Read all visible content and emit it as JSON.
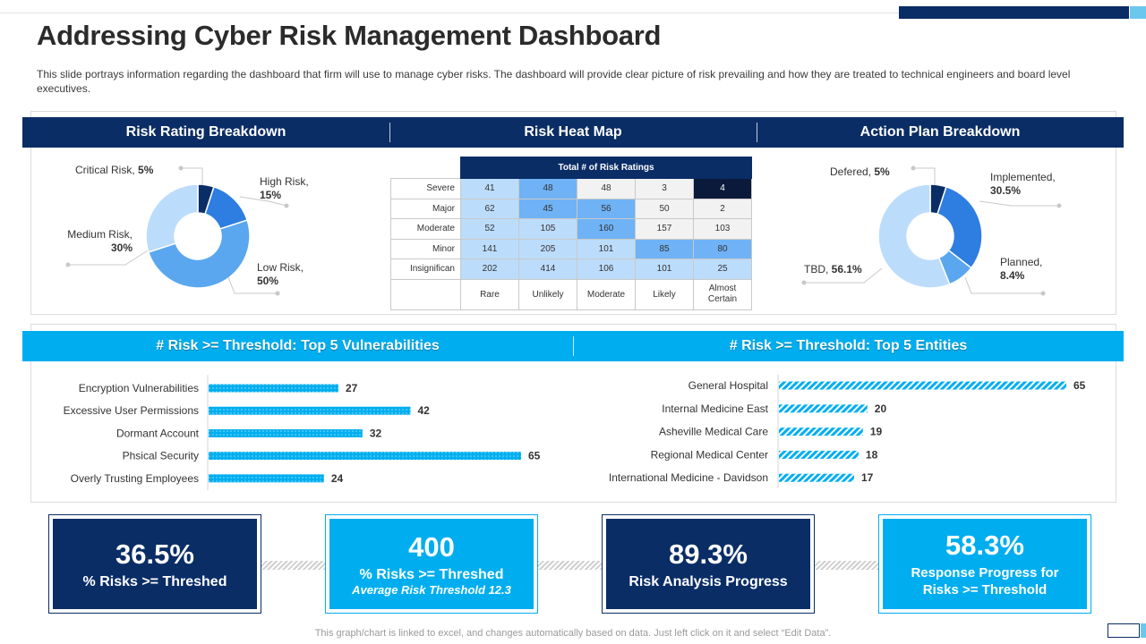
{
  "title": "Addressing Cyber Risk Management Dashboard",
  "subtitle": "This slide portrays information regarding the dashboard that firm will use to manage cyber risks. The dashboard will provide clear picture of risk prevailing and how they are treated to technical engineers and board level executives.",
  "headers_top": [
    "Risk Rating Breakdown",
    "Risk Heat Map",
    "Action Plan Breakdown"
  ],
  "headers_mid": [
    "# Risk >= Threshold: Top 5 Vulnerabilities",
    "# Risk >= Threshold: Top 5 Entities"
  ],
  "colors": {
    "navy": "#0a2d66",
    "cyan": "#00aeef",
    "blue": "#2e7de1",
    "mid_blue": "#5aa7f0",
    "light_blue": "#bcdcfb"
  },
  "chart_data": [
    {
      "type": "pie",
      "title": "Risk Rating Breakdown",
      "slices": [
        {
          "name": "Critical Risk",
          "value": 5,
          "label": "5%",
          "color": "#0a2d66"
        },
        {
          "name": "High Risk",
          "value": 15,
          "label": "15%",
          "color": "#2e7de1"
        },
        {
          "name": "Low Risk",
          "value": 50,
          "label": "50%",
          "color": "#5aa7f0"
        },
        {
          "name": "Medium Risk",
          "value": 30,
          "label": "30%",
          "color": "#bcdcfb"
        }
      ]
    },
    {
      "type": "heatmap",
      "title": "Risk Heat Map",
      "header": "Total # of Risk Ratings",
      "rows": [
        "Severe",
        "Major",
        "Moderate",
        "Minor",
        "Insignifican"
      ],
      "columns": [
        "Rare",
        "Unlikely",
        "Moderate",
        "Likely",
        "Almost Certain"
      ],
      "values": [
        [
          41,
          48,
          48,
          3,
          4
        ],
        [
          62,
          45,
          56,
          50,
          2
        ],
        [
          52,
          105,
          160,
          157,
          103
        ],
        [
          141,
          205,
          101,
          85,
          80
        ],
        [
          202,
          414,
          106,
          101,
          25
        ]
      ],
      "cell_colors": [
        [
          "#bcdcfb",
          "#6fb2f5",
          "#f2f2f2",
          "#f2f2f2",
          "#0b1a3a"
        ],
        [
          "#bcdcfb",
          "#6fb2f5",
          "#6fb2f5",
          "#f2f2f2",
          "#f2f2f2"
        ],
        [
          "#bcdcfb",
          "#bcdcfb",
          "#6fb2f5",
          "#f2f2f2",
          "#f2f2f2"
        ],
        [
          "#bcdcfb",
          "#bcdcfb",
          "#bcdcfb",
          "#6fb2f5",
          "#6fb2f5"
        ],
        [
          "#bcdcfb",
          "#bcdcfb",
          "#bcdcfb",
          "#bcdcfb",
          "#bcdcfb"
        ]
      ],
      "dark_cells": [
        [
          0,
          4
        ]
      ]
    },
    {
      "type": "pie",
      "title": "Action Plan Breakdown",
      "slices": [
        {
          "name": "Defered",
          "value": 5,
          "label": "5%",
          "color": "#0a2d66"
        },
        {
          "name": "Implemented",
          "value": 30.5,
          "label": "30.5%",
          "color": "#2e7de1"
        },
        {
          "name": "Planned",
          "value": 8.4,
          "label": "8.4%",
          "color": "#5aa7f0"
        },
        {
          "name": "TBD",
          "value": 56.1,
          "label": "56.1%",
          "color": "#bcdcfb"
        }
      ]
    },
    {
      "type": "bar",
      "title": "# Risk >= Threshold: Top 5 Vulnerabilities",
      "categories": [
        "Encryption Vulnerabilities",
        "Excessive User Permissions",
        "Dormant Account",
        "Phsical Security",
        "Overly Trusting Employees"
      ],
      "values": [
        27,
        42,
        32,
        65,
        24
      ],
      "xlim": [
        0,
        65
      ]
    },
    {
      "type": "bar",
      "title": "# Risk >= Threshold: Top 5 Entities",
      "categories": [
        "General Hospital",
        "Internal Medicine East",
        "Asheville Medical Care",
        "Regional Medical Center",
        "International Medicine - Davidson"
      ],
      "values": [
        65,
        20,
        19,
        18,
        17
      ],
      "xlim": [
        0,
        65
      ]
    }
  ],
  "kpis": [
    {
      "value": "36.5%",
      "label": "% Risks >= Threshed",
      "sub": ""
    },
    {
      "value": "400",
      "label": "% Risks >= Threshed",
      "sub": "Average Risk Threshold 12.3"
    },
    {
      "value": "89.3%",
      "label": "Risk Analysis Progress",
      "sub": ""
    },
    {
      "value": "58.3%",
      "label": "Response Progress for Risks >= Threshold",
      "sub": ""
    }
  ],
  "footer": "This graph/chart is linked to excel, and changes automatically based on data. Just left click on it and select “Edit Data”."
}
